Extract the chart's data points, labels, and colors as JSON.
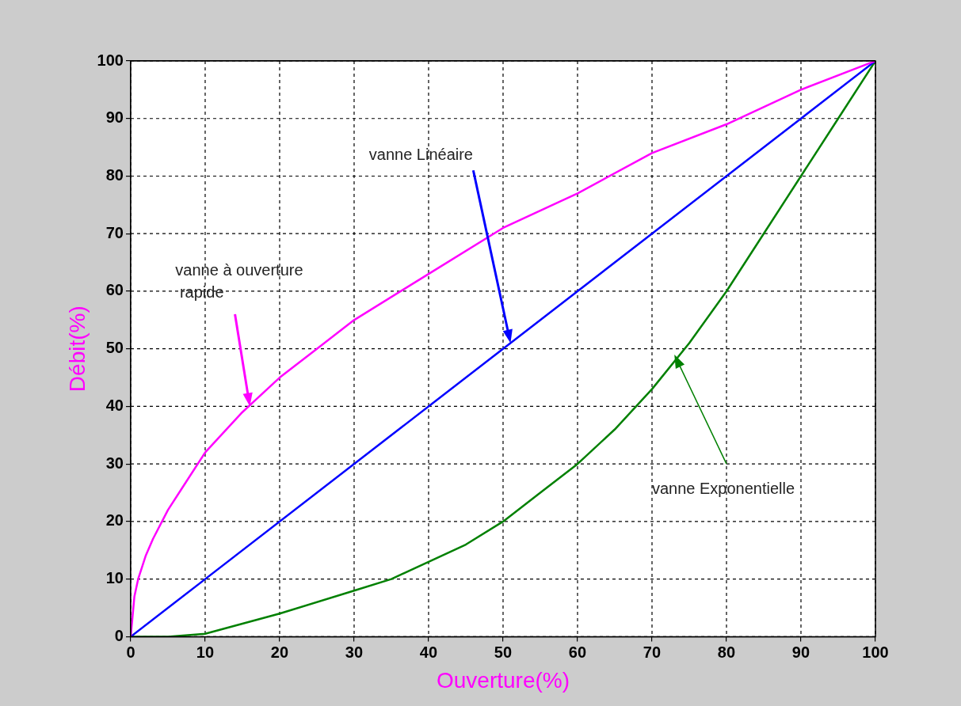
{
  "chart_data": {
    "type": "line",
    "xlabel": "Ouverture(%)",
    "ylabel": "Débit(%)",
    "xlim": [
      0,
      100
    ],
    "ylim": [
      0,
      100
    ],
    "xticks": [
      0,
      10,
      20,
      30,
      40,
      50,
      60,
      70,
      80,
      90,
      100
    ],
    "yticks": [
      0,
      10,
      20,
      30,
      40,
      50,
      60,
      70,
      80,
      90,
      100
    ],
    "grid": true,
    "legend": false,
    "marker": "none",
    "line_style": "solid",
    "series": [
      {
        "color": "#ff00ff",
        "x": [
          0,
          0.5,
          1,
          2,
          3,
          5,
          7,
          10,
          15,
          20,
          25,
          30,
          40,
          50,
          60,
          70,
          80,
          90,
          100
        ],
        "values": [
          0,
          7,
          10,
          14,
          17,
          22,
          26,
          32,
          39,
          45,
          50,
          55,
          63,
          71,
          77,
          84,
          89,
          95,
          100
        ]
      },
      {
        "color": "#0000ff",
        "x": [
          0,
          100
        ],
        "values": [
          0,
          100
        ]
      },
      {
        "color": "#008000",
        "x": [
          0,
          5,
          10,
          20,
          30,
          35,
          45,
          50,
          55,
          60,
          65,
          70,
          75,
          80,
          85,
          90,
          95,
          100
        ],
        "values": [
          0,
          0,
          0.5,
          4,
          8,
          10,
          16,
          20,
          25,
          30,
          36,
          43,
          51,
          60,
          70,
          80,
          90,
          100
        ]
      }
    ],
    "annotations": [
      "vanne à ouverture\nrapide",
      "vanne Linéaire",
      "vanne Exponentielle"
    ]
  }
}
